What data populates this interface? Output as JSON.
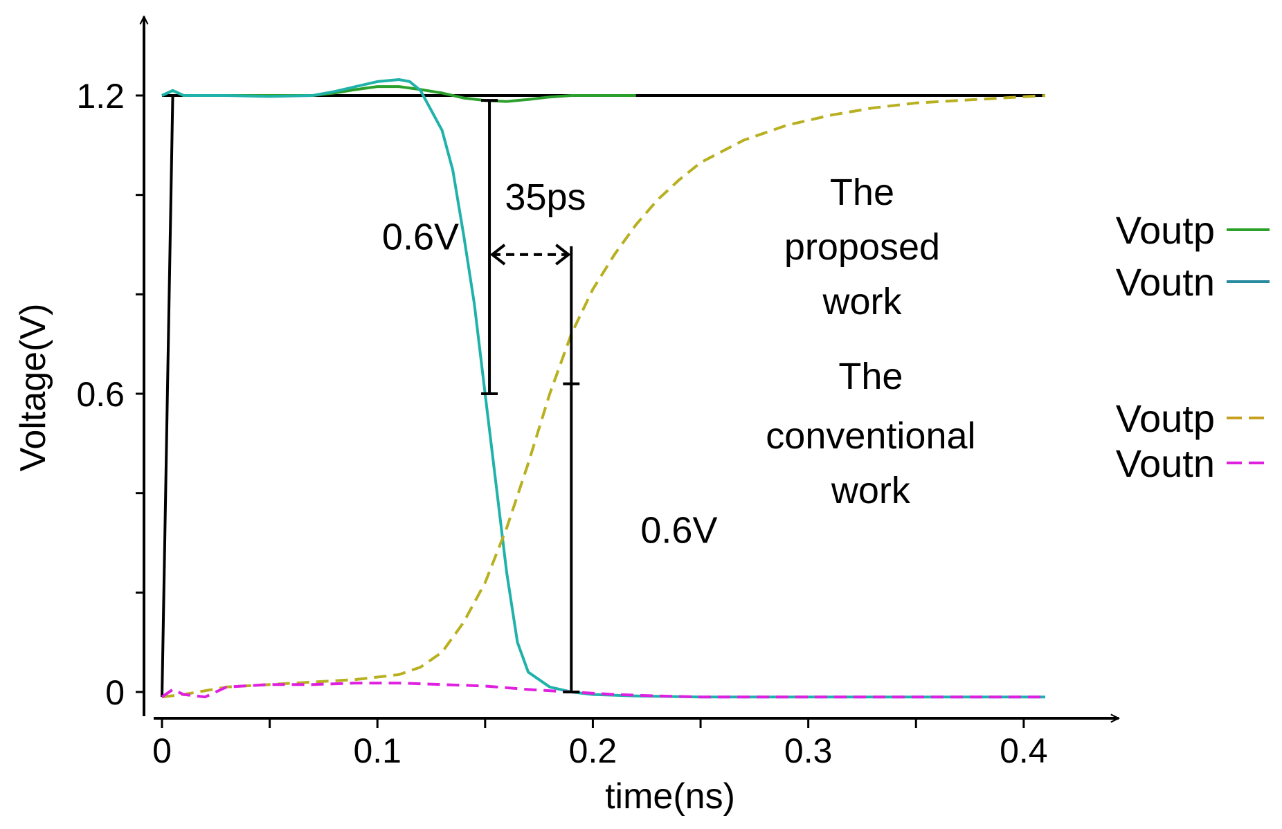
{
  "chart_data": {
    "type": "line",
    "xlabel": "time(ns)",
    "ylabel": "Voltage(V)",
    "xlim": [
      0,
      0.41
    ],
    "ylim": [
      -0.03,
      1.26
    ],
    "x_ticks": [
      {
        "value": 0,
        "label": "0"
      },
      {
        "value": 0.1,
        "label": "0.1"
      },
      {
        "value": 0.2,
        "label": "0.2"
      },
      {
        "value": 0.3,
        "label": "0.3"
      },
      {
        "value": 0.4,
        "label": "0.4"
      }
    ],
    "y_ticks": [
      {
        "value": 0,
        "label": "0"
      },
      {
        "value": 0.6,
        "label": "0.6"
      },
      {
        "value": 1.2,
        "label": "1.2"
      }
    ],
    "grid": false,
    "series": [
      {
        "name": "Voutp",
        "group": "The proposed work",
        "color": "#2ca02c",
        "dash": "solid",
        "x": [
          0,
          0.005,
          0.01,
          0.03,
          0.05,
          0.07,
          0.08,
          0.09,
          0.1,
          0.11,
          0.12,
          0.13,
          0.14,
          0.15,
          0.16,
          0.17,
          0.18,
          0.19,
          0.2,
          0.22
        ],
        "y": [
          1.2,
          1.21,
          1.2,
          1.2,
          1.2,
          1.2,
          1.205,
          1.212,
          1.218,
          1.218,
          1.212,
          1.205,
          1.195,
          1.19,
          1.188,
          1.192,
          1.197,
          1.2,
          1.2,
          1.2
        ]
      },
      {
        "name": "Voutn",
        "group": "The proposed work",
        "color": "#20b2aa",
        "dash": "solid",
        "x": [
          0,
          0.005,
          0.01,
          0.03,
          0.05,
          0.07,
          0.08,
          0.09,
          0.1,
          0.11,
          0.115,
          0.12,
          0.125,
          0.13,
          0.135,
          0.14,
          0.145,
          0.15,
          0.155,
          0.16,
          0.165,
          0.17,
          0.18,
          0.19,
          0.2,
          0.22,
          0.25,
          0.3,
          0.35,
          0.41
        ],
        "y": [
          1.2,
          1.21,
          1.2,
          1.2,
          1.198,
          1.2,
          1.208,
          1.218,
          1.228,
          1.232,
          1.228,
          1.21,
          1.17,
          1.13,
          1.05,
          0.92,
          0.78,
          0.6,
          0.42,
          0.24,
          0.1,
          0.04,
          0.01,
          0.0,
          -0.005,
          -0.008,
          -0.01,
          -0.01,
          -0.01,
          -0.01
        ]
      },
      {
        "name": "Voutp",
        "group": "The conventional work",
        "color": "#b8b020",
        "dash": "dashed",
        "x": [
          0,
          0.01,
          0.03,
          0.05,
          0.07,
          0.09,
          0.11,
          0.12,
          0.13,
          0.14,
          0.15,
          0.16,
          0.17,
          0.18,
          0.19,
          0.2,
          0.21,
          0.22,
          0.23,
          0.24,
          0.25,
          0.27,
          0.29,
          0.31,
          0.33,
          0.35,
          0.37,
          0.39,
          0.41
        ],
        "y": [
          -0.01,
          -0.005,
          0.01,
          0.015,
          0.02,
          0.025,
          0.035,
          0.05,
          0.08,
          0.14,
          0.22,
          0.33,
          0.46,
          0.6,
          0.72,
          0.81,
          0.88,
          0.94,
          0.99,
          1.03,
          1.065,
          1.11,
          1.14,
          1.16,
          1.175,
          1.185,
          1.19,
          1.195,
          1.2
        ]
      },
      {
        "name": "Voutn",
        "group": "The conventional work",
        "color": "#e020e0",
        "dash": "dashed",
        "x": [
          0,
          0.005,
          0.01,
          0.02,
          0.03,
          0.05,
          0.07,
          0.09,
          0.11,
          0.13,
          0.15,
          0.17,
          0.19,
          0.21,
          0.23,
          0.25,
          0.3,
          0.35,
          0.41
        ],
        "y": [
          -0.01,
          0.005,
          -0.005,
          -0.01,
          0.01,
          0.015,
          0.015,
          0.018,
          0.018,
          0.015,
          0.012,
          0.005,
          0.0,
          -0.005,
          -0.008,
          -0.01,
          -0.01,
          -0.01,
          -0.01
        ]
      }
    ],
    "reference_line": {
      "y": 1.2,
      "x": [
        0,
        0.41
      ],
      "color": "#000000"
    },
    "step_input": {
      "x": [
        0,
        0.005
      ],
      "y": [
        -0.01,
        1.2
      ],
      "color": "#000000"
    },
    "annotations": [
      {
        "text": "0.6V",
        "anchor_x": 0.12,
        "anchor_y": 0.89
      },
      {
        "text": "35ps",
        "anchor_x": 0.178,
        "anchor_y": 0.97
      },
      {
        "text": "0.6V",
        "anchor_x": 0.24,
        "anchor_y": 0.3
      },
      {
        "text": "The",
        "anchor_x": 0.325,
        "anchor_y": 0.98
      },
      {
        "text": "proposed",
        "anchor_x": 0.325,
        "anchor_y": 0.87
      },
      {
        "text": "work",
        "anchor_x": 0.325,
        "anchor_y": 0.76
      },
      {
        "text": "The",
        "anchor_x": 0.329,
        "anchor_y": 0.61
      },
      {
        "text": "conventional",
        "anchor_x": 0.329,
        "anchor_y": 0.49
      },
      {
        "text": "work",
        "anchor_x": 0.329,
        "anchor_y": 0.38
      }
    ],
    "markers": [
      {
        "type": "vertical-bracket",
        "x": 0.152,
        "y": [
          0.6,
          1.19
        ]
      },
      {
        "type": "vertical-bracket",
        "x": 0.19,
        "y": [
          0.0,
          0.62
        ]
      },
      {
        "type": "double-arrow-dashed",
        "x": [
          0.152,
          0.19
        ],
        "y": 0.88
      }
    ],
    "legend": {
      "placement": "right",
      "entries": [
        {
          "label": "Voutp",
          "color": "#2ca02c",
          "dash": "solid"
        },
        {
          "label": "Voutn",
          "color": "#2a8aa0",
          "dash": "solid"
        },
        {
          "label": "Voutp",
          "color": "#c8a020",
          "dash": "dashed"
        },
        {
          "label": "Voutn",
          "color": "#e020e0",
          "dash": "dashed"
        }
      ]
    }
  }
}
